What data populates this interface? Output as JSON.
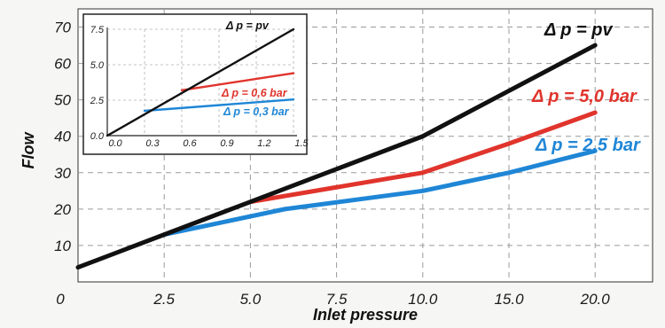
{
  "chart_data": [
    {
      "type": "line",
      "xlabel": "Inlet pressure",
      "ylabel": "Flow",
      "categories": [
        "0",
        "2.5",
        "5.0",
        "7.5",
        "10.0",
        "15.0",
        "20.0"
      ],
      "yticks": [
        "10",
        "20",
        "30",
        "40",
        "50",
        "60",
        "70"
      ],
      "ylim": [
        0,
        75
      ],
      "grid": true,
      "series": [
        {
          "name": "Δ p = pv",
          "color": "#111111",
          "points": [
            [
              0,
              4
            ],
            [
              1,
              13
            ],
            [
              2,
              22
            ],
            [
              3,
              31
            ],
            [
              4,
              40
            ],
            [
              5,
              52.5
            ],
            [
              6,
              65
            ]
          ]
        },
        {
          "name": "Δ p = 5,0 bar",
          "color": "#e0342c",
          "points": [
            [
              2,
              22
            ],
            [
              4,
              30
            ],
            [
              5,
              38
            ],
            [
              6,
              46.5
            ]
          ]
        },
        {
          "name": "Δ p = 2,5 bar",
          "color": "#1f86d6",
          "points": [
            [
              1,
              13
            ],
            [
              2.4,
              20
            ],
            [
              4,
              25
            ],
            [
              5,
              30
            ],
            [
              6,
              36
            ]
          ]
        }
      ]
    },
    {
      "type": "line",
      "xticks": [
        "0.0",
        "0.3",
        "0.6",
        "0.9",
        "1.2",
        "1.5"
      ],
      "yticks": [
        "0.0",
        "2.5",
        "5.0",
        "7.5"
      ],
      "xlim": [
        0,
        1.5
      ],
      "ylim": [
        0,
        7.5
      ],
      "grid": true,
      "series": [
        {
          "name": "Δ p = pv",
          "color": "#111111",
          "points": [
            [
              0,
              0
            ],
            [
              1.5,
              7.5
            ]
          ]
        },
        {
          "name": "Δ p = 0,6 bar",
          "color": "#e0342c",
          "points": [
            [
              0.6,
              3.2
            ],
            [
              1.5,
              4.4
            ]
          ]
        },
        {
          "name": "Δ p = 0,3 bar",
          "color": "#1f86d6",
          "points": [
            [
              0.3,
              1.75
            ],
            [
              1.5,
              2.55
            ]
          ]
        }
      ]
    }
  ]
}
